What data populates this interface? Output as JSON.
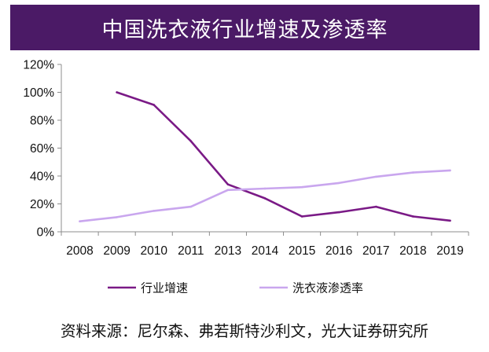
{
  "chart_data": {
    "type": "line",
    "title": "中国洗衣液行业增速及渗透率",
    "categories": [
      "2008",
      "2009",
      "2010",
      "2011",
      "2013",
      "2014",
      "2015",
      "2016",
      "2017",
      "2018",
      "2019"
    ],
    "ylim": [
      0,
      120
    ],
    "y_ticks": [
      "0%",
      "20%",
      "40%",
      "60%",
      "80%",
      "100%",
      "120%"
    ],
    "series": [
      {
        "name": "行业增速",
        "color": "#7a1a86",
        "values": [
          null,
          100,
          91,
          65,
          34,
          24,
          11,
          14,
          18,
          11,
          8
        ]
      },
      {
        "name": "洗衣液渗透率",
        "color": "#c9a6ee",
        "values": [
          7.5,
          10.5,
          15,
          18,
          30,
          31,
          32,
          35,
          39.5,
          42.5,
          44
        ]
      }
    ],
    "legend_position": "bottom",
    "grid": false
  },
  "source_text": "资料来源：尼尔森、弗若斯特沙利文，光大证券研究所"
}
